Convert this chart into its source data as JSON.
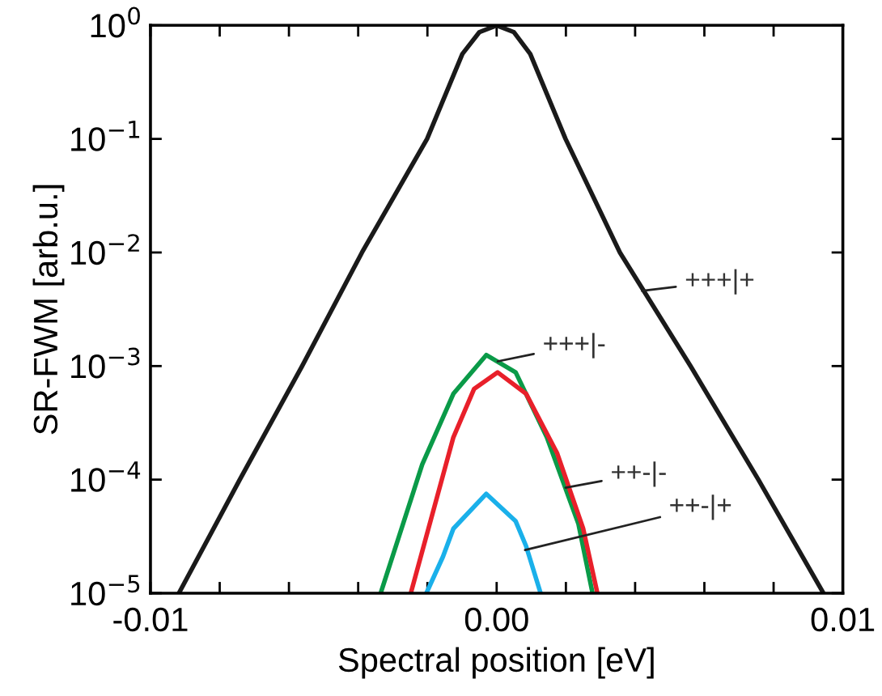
{
  "chart_data": {
    "type": "line",
    "xlabel": "Spectral position [eV]",
    "ylabel": "SR-FWM [arb.u.]",
    "log": "y",
    "grid": false,
    "marker": "none",
    "line_style": "solid",
    "xlim": [
      -0.01,
      0.01
    ],
    "xticks": [
      -0.01,
      {
        "value": -0.008,
        "label": null
      },
      {
        "value": -0.006,
        "label": null
      },
      {
        "value": -0.004,
        "label": null
      },
      {
        "value": -0.002,
        "label": null
      },
      {
        "value": 0,
        "label": "0.00"
      },
      {
        "value": 0.002,
        "label": null
      },
      {
        "value": 0.004,
        "label": null
      },
      {
        "value": 0.006,
        "label": null
      },
      {
        "value": 0.008,
        "label": null
      },
      0.01
    ],
    "ylim": [
      1e-05,
      1
    ],
    "yticks": [
      {
        "value": 1e-05,
        "label": "10$^{−5}$"
      },
      {
        "value": 0.0001,
        "label": "10$^{−4}$"
      },
      {
        "value": 0.001,
        "label": "10$^{−3}$"
      },
      {
        "value": 0.01,
        "label": "10$^{−2}$"
      },
      {
        "value": 0.1,
        "label": "10$^{−1}$"
      },
      {
        "value": 1,
        "label": "10$^{0}$"
      }
    ],
    "series": [
      {
        "color": "#1a1a1a",
        "x": [
          -0.00918,
          -0.00742,
          -0.00562,
          -0.00389,
          -0.00201,
          -0.00099,
          -0.0005,
          0,
          0.0005,
          0.00097,
          0.00199,
          0.00356,
          0.0056,
          0.00756,
          0.00944
        ],
        "values": [
          1e-05,
          0.0001,
          0.001,
          0.01,
          0.1,
          0.56,
          0.87,
          1,
          0.87,
          0.56,
          0.1,
          0.01,
          0.001,
          0.0001,
          1e-05
        ]
      },
      {
        "color": "#0a9a48",
        "x": [
          -0.00335,
          -0.00215,
          -0.00125,
          -0.0003,
          0.00055,
          0.00145,
          0.00236,
          0.00277
        ],
        "values": [
          1e-05,
          0.000136,
          0.00057,
          0.00125,
          0.00088,
          0.000236,
          4.1e-05,
          1e-05
        ]
      },
      {
        "color": "#e8202a",
        "x": [
          -0.00248,
          -0.00125,
          -0.00065,
          3e-05,
          0.00085,
          0.00175,
          0.0025,
          0.00291
        ],
        "values": [
          1e-05,
          0.000236,
          0.00063,
          0.00088,
          0.00057,
          0.00017,
          3.7e-05,
          1e-05
        ]
      },
      {
        "color": "#1ab0ea",
        "x": [
          -0.00203,
          -0.00155,
          -0.00125,
          -0.0003,
          0.00055,
          0.00085,
          0.00127
        ],
        "values": [
          1e-05,
          2.1e-05,
          3.7e-05,
          7.5e-05,
          4.3e-05,
          2.6e-05,
          1e-05
        ]
      }
    ],
    "annotations": [
      {
        "text": "+++|+",
        "x": 0.0042,
        "y": 0.0046
      },
      {
        "text": "+++|-",
        "x": 3e-05,
        "y": 0.0011
      },
      {
        "text": "++-|-",
        "x": 0.00199,
        "y": 8.5e-05
      },
      {
        "text": "++-|+",
        "x": 0.00082,
        "y": 2.4e-05
      }
    ]
  }
}
